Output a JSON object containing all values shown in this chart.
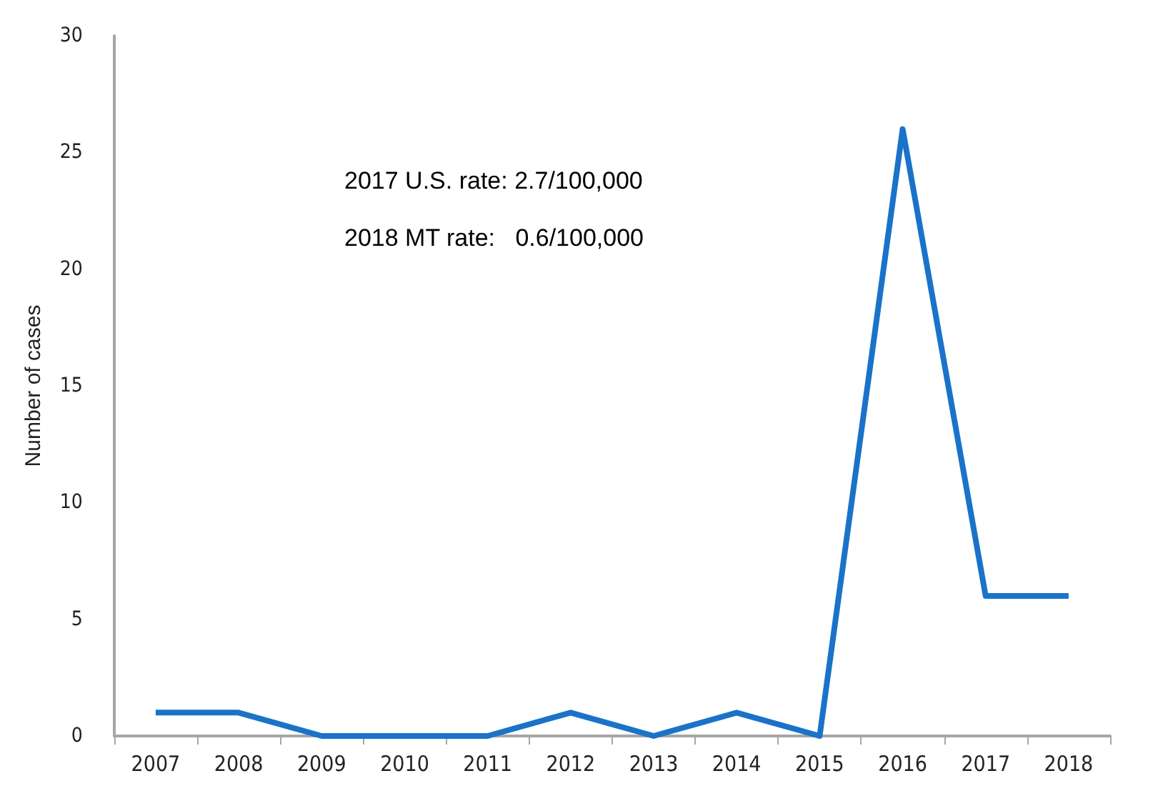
{
  "chart_data": {
    "type": "line",
    "ylabel": "Number of cases",
    "categories": [
      "2007",
      "2008",
      "2009",
      "2010",
      "2011",
      "2012",
      "2013",
      "2014",
      "2015",
      "2016",
      "2017",
      "2018"
    ],
    "series": [
      {
        "color": "#1a73c8",
        "values": [
          1,
          1,
          0,
          0,
          0,
          1,
          0,
          1,
          0,
          26,
          6,
          6
        ]
      }
    ],
    "ylim": [
      0,
      30
    ],
    "yticks": [
      0,
      5,
      10,
      15,
      20,
      25,
      30
    ],
    "grid": false,
    "marker": "none",
    "line_style": "solid",
    "annotations": [
      "2017 U.S. rate: 2.7/100,000",
      "2018 MT rate:   0.6/100,000"
    ]
  }
}
